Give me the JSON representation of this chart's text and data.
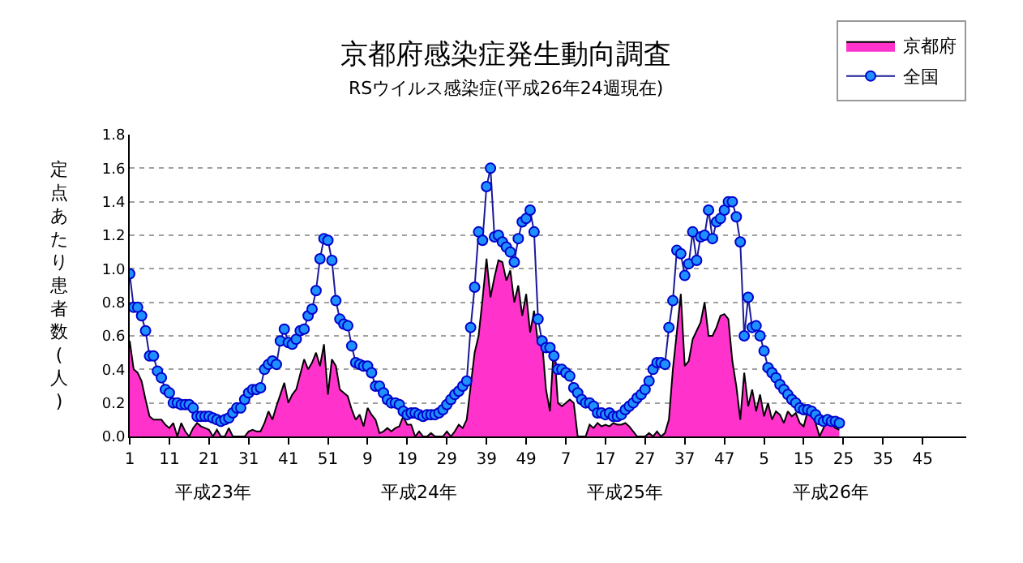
{
  "chart_data": {
    "type": "area",
    "title": "京都府感染症発生動向調査",
    "subtitle": "RSウイルス感染症(平成26年24週現在)",
    "ylabel": "定点あたり患者数(人)",
    "annotations": [
      "平成23年",
      "平成24年",
      "平成25年",
      "平成26年"
    ],
    "categories": [
      "1",
      null,
      null,
      null,
      null,
      null,
      null,
      null,
      null,
      null,
      "11",
      null,
      null,
      null,
      null,
      null,
      null,
      null,
      null,
      null,
      "21",
      null,
      null,
      null,
      null,
      null,
      null,
      null,
      null,
      null,
      "31",
      null,
      null,
      null,
      null,
      null,
      null,
      null,
      null,
      null,
      "41",
      null,
      null,
      null,
      null,
      null,
      null,
      null,
      null,
      null,
      "51",
      null,
      null,
      null,
      null,
      null,
      null,
      null,
      null,
      null,
      "9",
      null,
      null,
      null,
      null,
      null,
      null,
      null,
      null,
      null,
      "19",
      null,
      null,
      null,
      null,
      null,
      null,
      null,
      null,
      null,
      "29",
      null,
      null,
      null,
      null,
      null,
      null,
      null,
      null,
      null,
      "39",
      null,
      null,
      null,
      null,
      null,
      null,
      null,
      null,
      null,
      "49",
      null,
      null,
      null,
      null,
      null,
      null,
      null,
      null,
      null,
      "7",
      null,
      null,
      null,
      null,
      null,
      null,
      null,
      null,
      null,
      "17",
      null,
      null,
      null,
      null,
      null,
      null,
      null,
      null,
      null,
      "27",
      null,
      null,
      null,
      null,
      null,
      null,
      null,
      null,
      null,
      "37",
      null,
      null,
      null,
      null,
      null,
      null,
      null,
      null,
      null,
      "47",
      null,
      null,
      null,
      null,
      null,
      null,
      null,
      null,
      null,
      "5",
      null,
      null,
      null,
      null,
      null,
      null,
      null,
      null,
      null,
      "15",
      null,
      null,
      null,
      null,
      null,
      null,
      null,
      null,
      null,
      "25",
      null,
      null,
      null,
      null,
      null,
      null,
      null,
      null,
      null,
      "35",
      null,
      null,
      null,
      null,
      null,
      null,
      null,
      null,
      null,
      "45",
      null,
      null,
      null,
      null,
      null,
      null,
      null,
      null,
      null,
      null,
      null
    ],
    "series": [
      {
        "name": "京都府",
        "color": "#ff33cc",
        "values": [
          0.57,
          0.4,
          0.38,
          0.33,
          0.22,
          0.12,
          0.1,
          0.1,
          0.1,
          0.07,
          0.05,
          0.08,
          0.0,
          0.08,
          0.03,
          0.0,
          0.05,
          0.08,
          0.06,
          0.05,
          0.04,
          0.0,
          0.04,
          0.0,
          0.0,
          0.05,
          0.0,
          0.0,
          0.0,
          0.0,
          0.03,
          0.04,
          0.03,
          0.03,
          0.08,
          0.15,
          0.1,
          0.18,
          0.25,
          0.32,
          0.2,
          0.25,
          0.28,
          0.37,
          0.46,
          0.4,
          0.44,
          0.5,
          0.42,
          0.55,
          0.25,
          0.46,
          0.42,
          0.28,
          0.26,
          0.24,
          0.16,
          0.1,
          0.13,
          0.06,
          0.17,
          0.13,
          0.1,
          0.02,
          0.03,
          0.05,
          0.03,
          0.05,
          0.06,
          0.12,
          0.07,
          0.07,
          0.0,
          0.03,
          0.0,
          0.0,
          0.02,
          0.0,
          0.0,
          0.0,
          0.03,
          0.0,
          0.03,
          0.07,
          0.05,
          0.1,
          0.3,
          0.5,
          0.6,
          0.82,
          1.06,
          0.83,
          0.95,
          1.05,
          1.04,
          0.93,
          0.99,
          0.8,
          0.9,
          0.72,
          0.85,
          0.62,
          0.75,
          0.55,
          0.57,
          0.28,
          0.15,
          0.55,
          0.2,
          0.18,
          0.2,
          0.22,
          0.2,
          0.0,
          0.0,
          0.0,
          0.07,
          0.05,
          0.08,
          0.06,
          0.07,
          0.06,
          0.08,
          0.07,
          0.07,
          0.08,
          0.06,
          0.03,
          0.0,
          0.0,
          0.0,
          0.02,
          0.0,
          0.03,
          0.0,
          0.02,
          0.1,
          0.4,
          0.62,
          0.85,
          0.42,
          0.45,
          0.58,
          0.63,
          0.68,
          0.8,
          0.6,
          0.6,
          0.65,
          0.72,
          0.73,
          0.7,
          0.45,
          0.3,
          0.1,
          0.38,
          0.18,
          0.28,
          0.15,
          0.25,
          0.12,
          0.2,
          0.1,
          0.15,
          0.13,
          0.08,
          0.15,
          0.12,
          0.14,
          0.08,
          0.06,
          0.15,
          0.13,
          0.08,
          0.0,
          0.05,
          0.1,
          0.07,
          0.05,
          0.04,
          null,
          null,
          null,
          null,
          null,
          null,
          null,
          null,
          null,
          null,
          null,
          null,
          null,
          null,
          null,
          null,
          null,
          null,
          null,
          null,
          null,
          null,
          null,
          null,
          null,
          null,
          null,
          null,
          null,
          null,
          null,
          null
        ]
      },
      {
        "name": "全国",
        "type": "line",
        "marker": "circle",
        "color": "#1e90ff",
        "values": [
          0.97,
          0.77,
          0.77,
          0.72,
          0.63,
          0.48,
          0.48,
          0.39,
          0.35,
          0.28,
          0.26,
          0.2,
          0.2,
          0.19,
          0.19,
          0.19,
          0.17,
          0.12,
          0.12,
          0.12,
          0.12,
          0.11,
          0.1,
          0.09,
          0.1,
          0.11,
          0.14,
          0.17,
          0.17,
          0.22,
          0.26,
          0.28,
          0.28,
          0.29,
          0.4,
          0.43,
          0.45,
          0.43,
          0.57,
          0.64,
          0.56,
          0.55,
          0.58,
          0.63,
          0.64,
          0.72,
          0.76,
          0.87,
          1.06,
          1.18,
          1.17,
          1.05,
          0.81,
          0.7,
          0.67,
          0.66,
          0.54,
          0.44,
          0.43,
          0.42,
          0.42,
          0.38,
          0.3,
          0.3,
          0.26,
          0.22,
          0.2,
          0.2,
          0.19,
          0.15,
          0.13,
          0.14,
          0.14,
          0.13,
          0.12,
          0.13,
          0.13,
          0.13,
          0.14,
          0.16,
          0.19,
          0.22,
          0.25,
          0.27,
          0.3,
          0.33,
          0.65,
          0.89,
          1.22,
          1.17,
          1.49,
          1.6,
          1.19,
          1.2,
          1.16,
          1.13,
          1.1,
          1.04,
          1.18,
          1.28,
          1.3,
          1.35,
          1.22,
          0.7,
          0.57,
          0.53,
          0.53,
          0.48,
          0.4,
          0.4,
          0.38,
          0.36,
          0.29,
          0.26,
          0.22,
          0.2,
          0.2,
          0.18,
          0.14,
          0.14,
          0.13,
          0.14,
          0.12,
          0.12,
          0.13,
          0.16,
          0.18,
          0.2,
          0.23,
          0.25,
          0.28,
          0.33,
          0.4,
          0.44,
          0.44,
          0.43,
          0.65,
          0.81,
          1.11,
          1.09,
          0.96,
          1.03,
          1.22,
          1.05,
          1.19,
          1.2,
          1.35,
          1.18,
          1.28,
          1.3,
          1.35,
          1.4,
          1.4,
          1.31,
          1.16,
          0.6,
          0.83,
          0.65,
          0.66,
          0.6,
          0.51,
          0.41,
          0.38,
          0.35,
          0.31,
          0.28,
          0.25,
          0.22,
          0.2,
          0.17,
          0.16,
          0.16,
          0.15,
          0.13,
          0.1,
          0.09,
          0.1,
          0.09,
          0.09,
          0.08,
          null,
          null,
          null,
          null,
          null,
          null,
          null,
          null,
          null,
          null,
          null,
          null,
          null,
          null,
          null,
          null,
          null,
          null,
          null,
          null,
          null,
          null,
          null,
          null,
          null,
          null,
          null,
          null,
          null,
          null,
          null,
          null
        ]
      }
    ],
    "ylim": [
      0,
      1.8
    ],
    "yticks": [
      {
        "value": 0,
        "label": "0.0"
      },
      {
        "value": 0.2,
        "label": "0.2"
      },
      {
        "value": 0.4,
        "label": "0.4"
      },
      {
        "value": 0.6,
        "label": "0.6"
      },
      {
        "value": 0.8,
        "label": "0.8"
      },
      {
        "value": 1.0,
        "label": "1.0"
      },
      {
        "value": 1.2,
        "label": "1.2"
      },
      {
        "value": 1.4,
        "label": "1.4"
      },
      {
        "value": 1.6,
        "label": "1.6"
      },
      {
        "value": 1.8,
        "label": "1.8"
      }
    ],
    "grid": "y",
    "legend": "top right"
  }
}
